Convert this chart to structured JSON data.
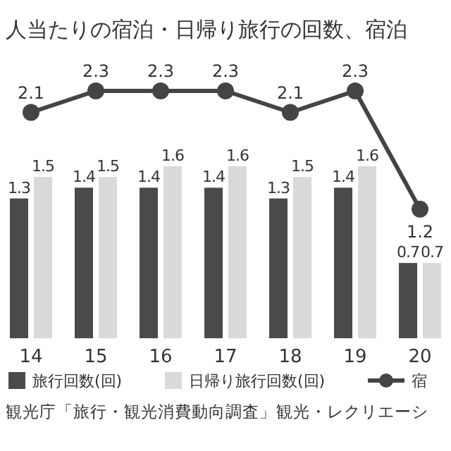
{
  "chart_data": {
    "type": "bar",
    "title": "人当たりの宿泊・日帰り旅行の回数、宿泊",
    "categories": [
      "14",
      "15",
      "16",
      "17",
      "18",
      "19",
      "20"
    ],
    "series": [
      {
        "name": "旅行回数(回)",
        "color": "#4a4a4a",
        "values": [
          1.3,
          1.4,
          1.4,
          1.4,
          1.3,
          1.4,
          0.7
        ]
      },
      {
        "name": "日帰り旅行回数(回)",
        "color": "#d9d9d9",
        "values": [
          1.5,
          1.5,
          1.6,
          1.6,
          1.5,
          1.6,
          0.7
        ]
      },
      {
        "name": "宿",
        "type": "line",
        "color": "#444444",
        "values": [
          2.1,
          2.3,
          2.3,
          2.3,
          2.1,
          2.3,
          1.2
        ]
      }
    ],
    "tick_labels": "x",
    "data_labels": true,
    "legend": "bottom",
    "marker": "circle",
    "line_style": "solid",
    "annotations": [
      "観光庁「旅行・観光消費動向調査」観光・レクリエーシ"
    ]
  }
}
